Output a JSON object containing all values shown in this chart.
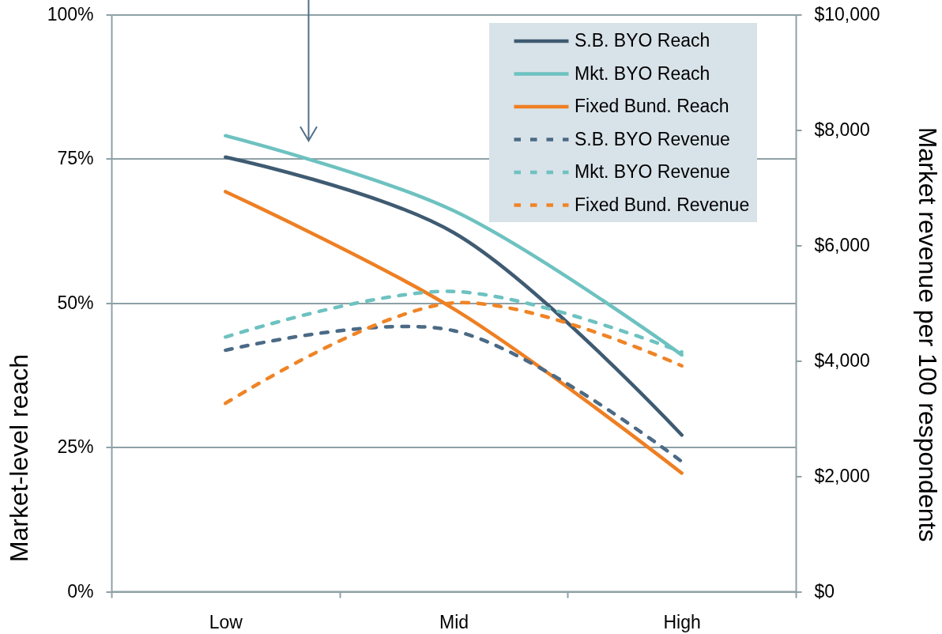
{
  "chart_data": {
    "type": "line",
    "categories": [
      "Low",
      "Mid",
      "High"
    ],
    "ylabel": "Market-level reach",
    "y2label": "Market revenue per 100 respondents",
    "ylim": [
      0,
      100
    ],
    "yticks": [
      {
        "value": 0,
        "label": "0%"
      },
      {
        "value": 25,
        "label": "25%"
      },
      {
        "value": 50,
        "label": "50%"
      },
      {
        "value": 75,
        "label": "75%"
      },
      {
        "value": 100,
        "label": "100%"
      }
    ],
    "y2lim": [
      0,
      10000
    ],
    "y2ticks": [
      {
        "value": 0,
        "label": "$0"
      },
      {
        "value": 2000,
        "label": "$2,000"
      },
      {
        "value": 4000,
        "label": "$4,000"
      },
      {
        "value": 6000,
        "label": "$6,000"
      },
      {
        "value": 8000,
        "label": "$8,000"
      },
      {
        "value": 10000,
        "label": "$10,000"
      }
    ],
    "grid": "y",
    "legend": "top right",
    "series": [
      {
        "name": "S.B. BYO Reach",
        "color": "#3f5b72",
        "values": [
          75.3,
          62.2,
          27.1
        ],
        "line_style": "solid"
      },
      {
        "name": "Mkt. BYO Reach",
        "color": "#6dc2c0",
        "values": [
          79.0,
          66.0,
          41.0
        ],
        "line_style": "solid"
      },
      {
        "name": "Fixed Bund. Reach",
        "color": "#ee7f23",
        "values": [
          69.3,
          49.0,
          20.5
        ],
        "line_style": "solid"
      },
      {
        "name": "S.B. BYO Revenue",
        "color": "#4b6a85",
        "values": [
          4180,
          4520,
          2250
        ],
        "axis": "y2",
        "line_style": "dashed"
      },
      {
        "name": "Mkt. BYO Revenue",
        "color": "#6dc2c0",
        "values": [
          4410,
          5200,
          4150
        ],
        "axis": "y2",
        "line_style": "dashed"
      },
      {
        "name": "Fixed Bund. Revenue",
        "color": "#ef8425",
        "values": [
          3260,
          5000,
          3910
        ],
        "axis": "y2",
        "line_style": "dashed"
      }
    ]
  }
}
